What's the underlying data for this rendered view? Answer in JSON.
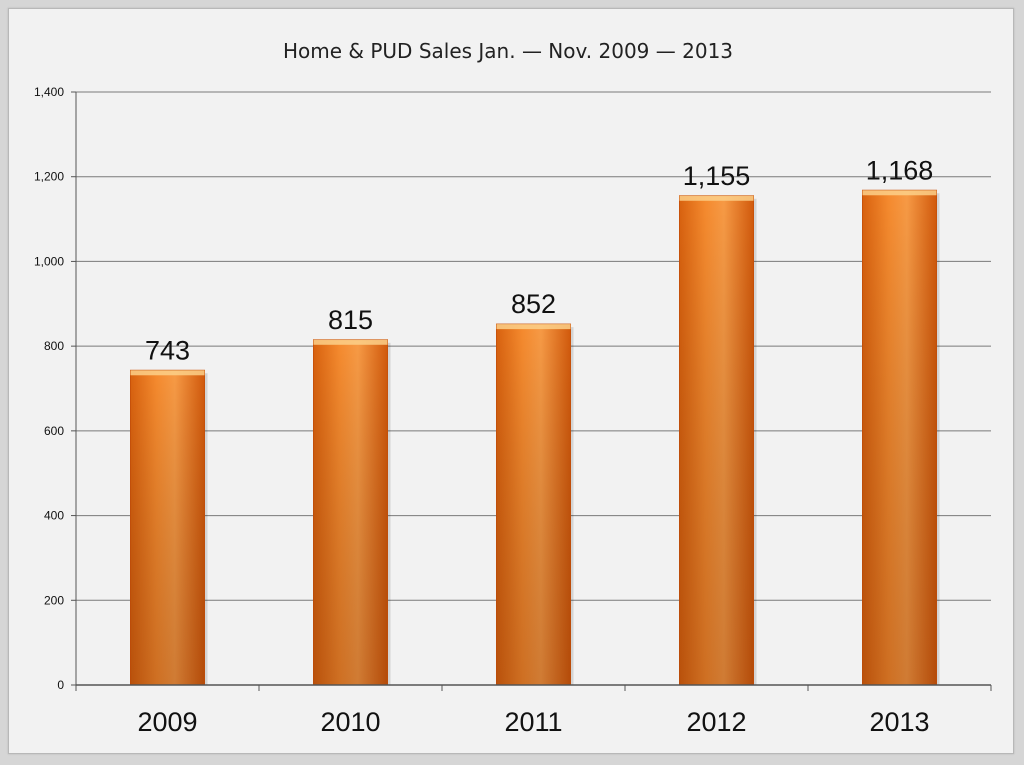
{
  "chart_data": {
    "type": "bar",
    "title": "Home & PUD Sales Jan. — Nov. 2009 — 2013",
    "categories": [
      "2009",
      "2010",
      "2011",
      "2012",
      "2013"
    ],
    "values": [
      743,
      815,
      852,
      1155,
      1168
    ],
    "data_labels": [
      "743",
      "815",
      "852",
      "1,155",
      "1,168"
    ],
    "y_ticks": [
      0,
      200,
      400,
      600,
      800,
      1000,
      1200,
      1400
    ],
    "y_tick_labels": [
      "0",
      "200",
      "400",
      "600",
      "800",
      "1,000",
      "1,200",
      "1,400"
    ],
    "ylim": [
      0,
      1400
    ],
    "xlabel": "",
    "ylabel": "",
    "grid": true,
    "legend": "none",
    "colors": {
      "bar_light": "#f7a04a",
      "bar_mid": "#f07a1e",
      "bar_dark": "#c9520a",
      "bar_top": "#fbd08a",
      "gridline": "#7a7a7a",
      "axis": "#555555",
      "background": "#f2f2f2"
    }
  }
}
